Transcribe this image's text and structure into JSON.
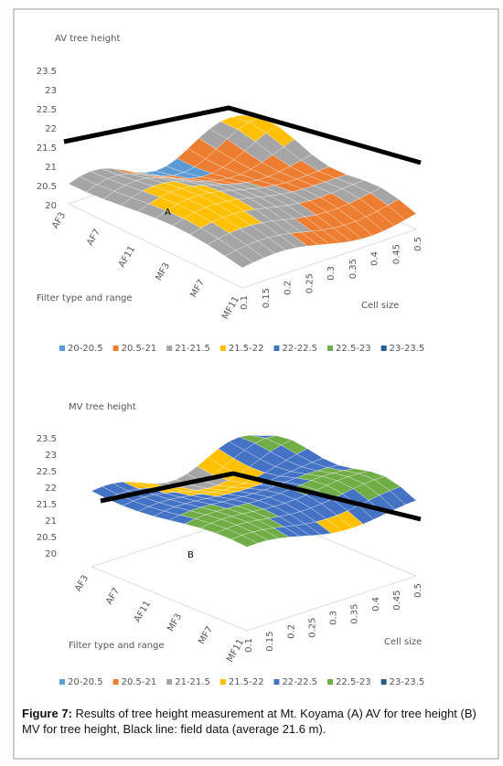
{
  "panels": [
    {
      "title": "AV tree height",
      "letter": "A",
      "z_ticks": [
        "23.5",
        "23",
        "22.5",
        "22",
        "21.5",
        "21",
        "20.5",
        "20"
      ],
      "filter_ticks": [
        "AF3",
        "AF7",
        "AF11",
        "MF3",
        "MF7",
        "MF11"
      ],
      "cell_ticks": [
        "0.1",
        "0.15",
        "0.2",
        "0.25",
        "0.3",
        "0.35",
        "0.4",
        "0.45",
        "0.5"
      ],
      "filter_label": "Filter type and range",
      "cell_label": "Cell size",
      "legend": [
        {
          "name": "20-20.5",
          "color": "#5b9bd5"
        },
        {
          "name": "20.5-21",
          "color": "#ed7d31"
        },
        {
          "name": "21-21.5",
          "color": "#a5a5a5"
        },
        {
          "name": "21.5-22",
          "color": "#ffc000"
        },
        {
          "name": "22-22.5",
          "color": "#4472c4"
        },
        {
          "name": "22.5-23",
          "color": "#70ad47"
        },
        {
          "name": "23-23.5",
          "color": "#255e91"
        }
      ]
    },
    {
      "title": "MV tree height",
      "letter": "B",
      "z_ticks": [
        "23.5",
        "23",
        "22.5",
        "22",
        "21.5",
        "21",
        "20.5",
        "20"
      ],
      "filter_ticks": [
        "AF3",
        "AF7",
        "AF11",
        "MF3",
        "MF7",
        "MF11"
      ],
      "cell_ticks": [
        "0.1",
        "0.15",
        "0.2",
        "0.25",
        "0.3",
        "0.35",
        "0.4",
        "0.45",
        "0.5"
      ],
      "filter_label": "Filter type and range",
      "cell_label": "Cell size",
      "legend": [
        {
          "name": "20-20.5",
          "color": "#5b9bd5"
        },
        {
          "name": "20.5-21",
          "color": "#ed7d31"
        },
        {
          "name": "21-21.5",
          "color": "#a5a5a5"
        },
        {
          "name": "21.5-22",
          "color": "#ffc000"
        },
        {
          "name": "22-22.5",
          "color": "#4472c4"
        },
        {
          "name": "22.5-23",
          "color": "#70ad47"
        },
        {
          "name": "23-23.5",
          "color": "#255e91"
        }
      ]
    }
  ],
  "caption": {
    "label": "Figure 7:",
    "text": " Results of tree height measurement at Mt. Koyama (A) AV for tree height (B) MV for tree height, Black line: field data (average 21.6 m)."
  }
}
